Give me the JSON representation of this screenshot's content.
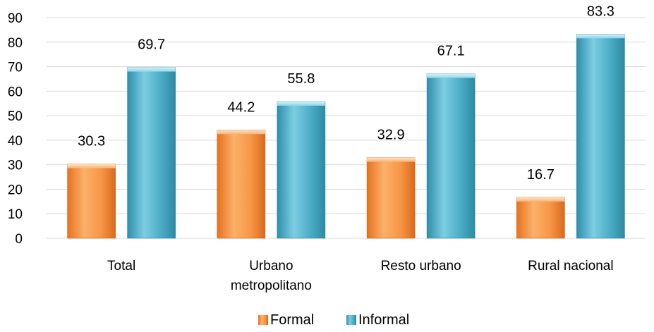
{
  "chart_data": {
    "type": "bar",
    "title": "",
    "xlabel": "",
    "ylabel": "",
    "categories": [
      "Total",
      "Urbano metropolitano",
      "Resto urbano",
      "Rural nacional"
    ],
    "series": [
      {
        "name": "Formal",
        "values": [
          30.3,
          44.2,
          32.9,
          16.7
        ],
        "color": "#f79646"
      },
      {
        "name": "Informal",
        "values": [
          69.7,
          55.8,
          67.1,
          83.3
        ],
        "color": "#4bacc6"
      }
    ],
    "ylim": [
      0,
      90
    ],
    "yticks": [
      0,
      10,
      20,
      30,
      40,
      50,
      60,
      70,
      80,
      90
    ],
    "grid": true,
    "legend": "bottom-center"
  }
}
